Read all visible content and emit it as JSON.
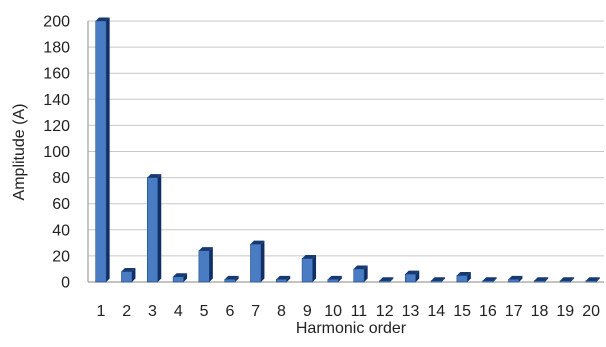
{
  "chart_data": {
    "type": "bar",
    "style": "3d-bar",
    "categories": [
      "1",
      "2",
      "3",
      "4",
      "5",
      "6",
      "7",
      "8",
      "9",
      "10",
      "11",
      "12",
      "13",
      "14",
      "15",
      "16",
      "17",
      "18",
      "19",
      "20"
    ],
    "values": [
      200,
      8,
      80,
      4,
      24,
      2,
      29,
      2,
      18,
      2,
      10,
      1,
      6,
      1,
      5,
      1,
      2,
      1,
      1,
      1
    ],
    "xlabel": "Harmonic order",
    "ylabel": "Amplitude (A)",
    "ylim": [
      0,
      200
    ],
    "yticks": [
      0,
      20,
      40,
      60,
      80,
      100,
      120,
      140,
      160,
      180,
      200
    ],
    "grid": true,
    "legend": "none",
    "colors": {
      "bar_front": "#4a7cc4",
      "bar_side": "#0f2f66",
      "bar_top": "#16396f",
      "grid": "#c8c8c8",
      "axis": "#9f9f9f",
      "text": "#222222"
    }
  }
}
